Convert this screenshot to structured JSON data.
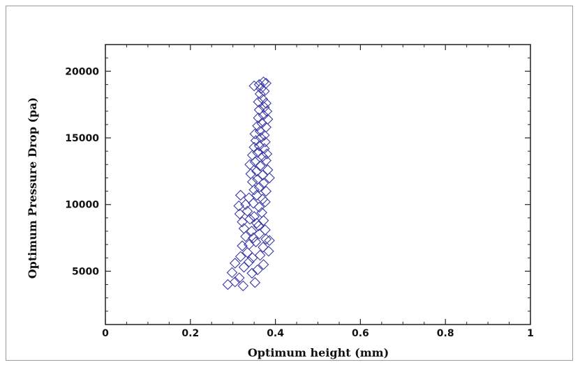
{
  "chart_data": {
    "type": "scatter",
    "title": "",
    "xlabel": "Optimum height (mm)",
    "ylabel": "Optimum Pressure Drop (pa)",
    "xlim": [
      0,
      1
    ],
    "ylim": [
      1000,
      22000
    ],
    "x_ticks": [
      "0",
      "0.2",
      "0.4",
      "0.6",
      "0.8",
      "1"
    ],
    "y_ticks": [
      "5000",
      "10000",
      "15000",
      "20000"
    ],
    "x_tick_values": [
      0,
      0.2,
      0.4,
      0.6,
      0.8,
      1
    ],
    "y_tick_values": [
      5000,
      10000,
      15000,
      20000
    ],
    "grid": false,
    "legend": "none",
    "marker": "diamond-open",
    "color": "#3a3aa8",
    "series": [
      {
        "points": [
          [
            0.288,
            4000
          ],
          [
            0.305,
            4200
          ],
          [
            0.324,
            3900
          ],
          [
            0.352,
            4150
          ],
          [
            0.298,
            4900
          ],
          [
            0.315,
            4500
          ],
          [
            0.345,
            4850
          ],
          [
            0.305,
            5600
          ],
          [
            0.326,
            5300
          ],
          [
            0.338,
            5700
          ],
          [
            0.358,
            5100
          ],
          [
            0.372,
            5500
          ],
          [
            0.318,
            6100
          ],
          [
            0.334,
            6400
          ],
          [
            0.346,
            6000
          ],
          [
            0.364,
            6200
          ],
          [
            0.384,
            6500
          ],
          [
            0.322,
            6900
          ],
          [
            0.338,
            7000
          ],
          [
            0.354,
            7200
          ],
          [
            0.371,
            6800
          ],
          [
            0.386,
            7300
          ],
          [
            0.33,
            7600
          ],
          [
            0.348,
            7500
          ],
          [
            0.362,
            7800
          ],
          [
            0.378,
            7400
          ],
          [
            0.326,
            8200
          ],
          [
            0.344,
            8000
          ],
          [
            0.36,
            8400
          ],
          [
            0.376,
            8100
          ],
          [
            0.322,
            8700
          ],
          [
            0.34,
            8900
          ],
          [
            0.356,
            8600
          ],
          [
            0.372,
            8800
          ],
          [
            0.316,
            9300
          ],
          [
            0.334,
            9500
          ],
          [
            0.35,
            9100
          ],
          [
            0.368,
            9400
          ],
          [
            0.314,
            9900
          ],
          [
            0.33,
            10000
          ],
          [
            0.348,
            10100
          ],
          [
            0.362,
            9800
          ],
          [
            0.376,
            10200
          ],
          [
            0.318,
            10700
          ],
          [
            0.338,
            10500
          ],
          [
            0.356,
            10700
          ],
          [
            0.37,
            10400
          ],
          [
            0.35,
            11100
          ],
          [
            0.362,
            11300
          ],
          [
            0.378,
            11000
          ],
          [
            0.346,
            11700
          ],
          [
            0.358,
            11900
          ],
          [
            0.372,
            11600
          ],
          [
            0.386,
            12000
          ],
          [
            0.342,
            12300
          ],
          [
            0.356,
            12500
          ],
          [
            0.37,
            12200
          ],
          [
            0.382,
            12600
          ],
          [
            0.34,
            13000
          ],
          [
            0.352,
            13200
          ],
          [
            0.364,
            12900
          ],
          [
            0.378,
            13300
          ],
          [
            0.346,
            13700
          ],
          [
            0.358,
            13900
          ],
          [
            0.37,
            13600
          ],
          [
            0.38,
            13800
          ],
          [
            0.35,
            14300
          ],
          [
            0.362,
            14400
          ],
          [
            0.374,
            14200
          ],
          [
            0.354,
            14800
          ],
          [
            0.366,
            15000
          ],
          [
            0.376,
            14700
          ],
          [
            0.352,
            15300
          ],
          [
            0.364,
            15500
          ],
          [
            0.374,
            15200
          ],
          [
            0.358,
            15900
          ],
          [
            0.368,
            16100
          ],
          [
            0.378,
            15800
          ],
          [
            0.36,
            16500
          ],
          [
            0.372,
            16700
          ],
          [
            0.382,
            16400
          ],
          [
            0.362,
            17100
          ],
          [
            0.374,
            17300
          ],
          [
            0.38,
            17000
          ],
          [
            0.36,
            17700
          ],
          [
            0.37,
            17900
          ],
          [
            0.378,
            17600
          ],
          [
            0.364,
            18300
          ],
          [
            0.374,
            18500
          ],
          [
            0.35,
            18900
          ],
          [
            0.362,
            19000
          ],
          [
            0.372,
            19200
          ],
          [
            0.378,
            19100
          ],
          [
            0.366,
            18700
          ]
        ]
      }
    ]
  }
}
